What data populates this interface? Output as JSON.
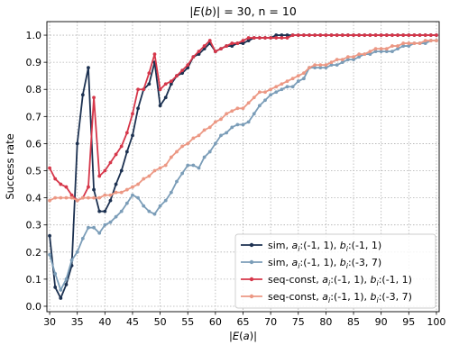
{
  "chart_data": {
    "type": "line",
    "title": "|E(b)| = 30, n = 10",
    "xlabel": "|E(a)|",
    "ylabel": "Success rate",
    "xlim": [
      29.5,
      100.5
    ],
    "ylim": [
      -0.02,
      1.05
    ],
    "xticks": [
      30,
      35,
      40,
      45,
      50,
      55,
      60,
      65,
      70,
      75,
      80,
      85,
      90,
      95,
      100
    ],
    "yticks": [
      0.0,
      0.1,
      0.2,
      0.3,
      0.4,
      0.5,
      0.6,
      0.7,
      0.8,
      0.9,
      1.0
    ],
    "ytick_labels": [
      "0.0",
      "0.1",
      "0.2",
      "0.3",
      "0.4",
      "0.5",
      "0.6",
      "0.7",
      "0.8",
      "0.9",
      "1.0"
    ],
    "grid": true,
    "legend_position": "lower right",
    "x": [
      30,
      31,
      32,
      33,
      34,
      35,
      36,
      37,
      38,
      39,
      40,
      41,
      42,
      43,
      44,
      45,
      46,
      47,
      48,
      49,
      50,
      51,
      52,
      53,
      54,
      55,
      56,
      57,
      58,
      59,
      60,
      61,
      62,
      63,
      64,
      65,
      66,
      67,
      68,
      69,
      70,
      71,
      72,
      73,
      74,
      75,
      76,
      77,
      78,
      79,
      80,
      81,
      82,
      83,
      84,
      85,
      86,
      87,
      88,
      89,
      90,
      91,
      92,
      93,
      94,
      95,
      96,
      97,
      98,
      99,
      100
    ],
    "series": [
      {
        "name_parts": [
          {
            "t": "sim, ",
            "i": false
          },
          {
            "t": "a",
            "i": true
          },
          {
            "t": "i",
            "i": true,
            "sub": true
          },
          {
            "t": ":(-1, 1), ",
            "i": false
          },
          {
            "t": "b",
            "i": true
          },
          {
            "t": "i",
            "i": true,
            "sub": true
          },
          {
            "t": ":(-1, 1)",
            "i": false
          }
        ],
        "color": "#1c3151",
        "values": [
          0.26,
          0.07,
          0.03,
          0.08,
          0.15,
          0.6,
          0.78,
          0.88,
          0.43,
          0.35,
          0.35,
          0.39,
          0.45,
          0.5,
          0.57,
          0.63,
          0.73,
          0.8,
          0.82,
          0.9,
          0.74,
          0.77,
          0.82,
          0.85,
          0.86,
          0.88,
          0.92,
          0.93,
          0.95,
          0.97,
          0.94,
          0.95,
          0.96,
          0.96,
          0.97,
          0.97,
          0.98,
          0.99,
          0.99,
          0.99,
          0.99,
          1.0,
          1.0,
          1.0,
          1.0,
          1.0,
          1.0,
          1.0,
          1.0,
          1.0,
          1.0,
          1.0,
          1.0,
          1.0,
          1.0,
          1.0,
          1.0,
          1.0,
          1.0,
          1.0,
          1.0,
          1.0,
          1.0,
          1.0,
          1.0,
          1.0,
          1.0,
          1.0,
          1.0,
          1.0,
          1.0
        ]
      },
      {
        "name_parts": [
          {
            "t": "sim, ",
            "i": false
          },
          {
            "t": "a",
            "i": true
          },
          {
            "t": "i",
            "i": true,
            "sub": true
          },
          {
            "t": ":(-1, 1), ",
            "i": false
          },
          {
            "t": "b",
            "i": true
          },
          {
            "t": "i",
            "i": true,
            "sub": true
          },
          {
            "t": ":(-3, 7)",
            "i": false
          }
        ],
        "color": "#7b9db8",
        "values": [
          0.19,
          0.12,
          0.06,
          0.1,
          0.17,
          0.2,
          0.25,
          0.29,
          0.29,
          0.27,
          0.3,
          0.31,
          0.33,
          0.35,
          0.38,
          0.41,
          0.4,
          0.37,
          0.35,
          0.34,
          0.37,
          0.39,
          0.42,
          0.46,
          0.49,
          0.52,
          0.52,
          0.51,
          0.55,
          0.57,
          0.6,
          0.63,
          0.64,
          0.66,
          0.67,
          0.67,
          0.68,
          0.71,
          0.74,
          0.76,
          0.78,
          0.79,
          0.8,
          0.81,
          0.81,
          0.83,
          0.84,
          0.88,
          0.88,
          0.88,
          0.88,
          0.89,
          0.89,
          0.9,
          0.91,
          0.91,
          0.92,
          0.93,
          0.93,
          0.94,
          0.94,
          0.94,
          0.94,
          0.95,
          0.96,
          0.96,
          0.97,
          0.97,
          0.97,
          0.98,
          0.98
        ]
      },
      {
        "name_parts": [
          {
            "t": "seq-const, ",
            "i": false
          },
          {
            "t": "a",
            "i": true
          },
          {
            "t": "i",
            "i": true,
            "sub": true
          },
          {
            "t": ":(-1, 1), ",
            "i": false
          },
          {
            "t": "b",
            "i": true
          },
          {
            "t": "i",
            "i": true,
            "sub": true
          },
          {
            "t": ":(-1, 1)",
            "i": false
          }
        ],
        "color": "#d6374a",
        "values": [
          0.51,
          0.47,
          0.45,
          0.44,
          0.41,
          0.39,
          0.4,
          0.44,
          0.77,
          0.48,
          0.5,
          0.53,
          0.56,
          0.59,
          0.64,
          0.71,
          0.8,
          0.8,
          0.86,
          0.93,
          0.8,
          0.82,
          0.83,
          0.85,
          0.87,
          0.89,
          0.92,
          0.94,
          0.96,
          0.98,
          0.94,
          0.95,
          0.96,
          0.97,
          0.97,
          0.98,
          0.99,
          0.99,
          0.99,
          0.99,
          0.99,
          0.99,
          0.99,
          0.99,
          1.0,
          1.0,
          1.0,
          1.0,
          1.0,
          1.0,
          1.0,
          1.0,
          1.0,
          1.0,
          1.0,
          1.0,
          1.0,
          1.0,
          1.0,
          1.0,
          1.0,
          1.0,
          1.0,
          1.0,
          1.0,
          1.0,
          1.0,
          1.0,
          1.0,
          1.0,
          1.0
        ]
      },
      {
        "name_parts": [
          {
            "t": "seq-const, ",
            "i": false
          },
          {
            "t": "a",
            "i": true
          },
          {
            "t": "i",
            "i": true,
            "sub": true
          },
          {
            "t": ":(-1, 1), ",
            "i": false
          },
          {
            "t": "b",
            "i": true
          },
          {
            "t": "i",
            "i": true,
            "sub": true
          },
          {
            "t": ":(-3, 7)",
            "i": false
          }
        ],
        "color": "#ec9884",
        "values": [
          0.39,
          0.4,
          0.4,
          0.4,
          0.4,
          0.39,
          0.4,
          0.4,
          0.4,
          0.4,
          0.41,
          0.41,
          0.42,
          0.42,
          0.43,
          0.44,
          0.45,
          0.47,
          0.48,
          0.5,
          0.51,
          0.52,
          0.55,
          0.57,
          0.59,
          0.6,
          0.62,
          0.63,
          0.65,
          0.66,
          0.68,
          0.69,
          0.71,
          0.72,
          0.73,
          0.73,
          0.75,
          0.77,
          0.79,
          0.79,
          0.8,
          0.81,
          0.82,
          0.83,
          0.84,
          0.85,
          0.86,
          0.88,
          0.89,
          0.89,
          0.89,
          0.9,
          0.91,
          0.91,
          0.92,
          0.92,
          0.93,
          0.93,
          0.94,
          0.95,
          0.95,
          0.95,
          0.96,
          0.96,
          0.97,
          0.97,
          0.97,
          0.97,
          0.98,
          0.98,
          0.98
        ]
      }
    ]
  }
}
